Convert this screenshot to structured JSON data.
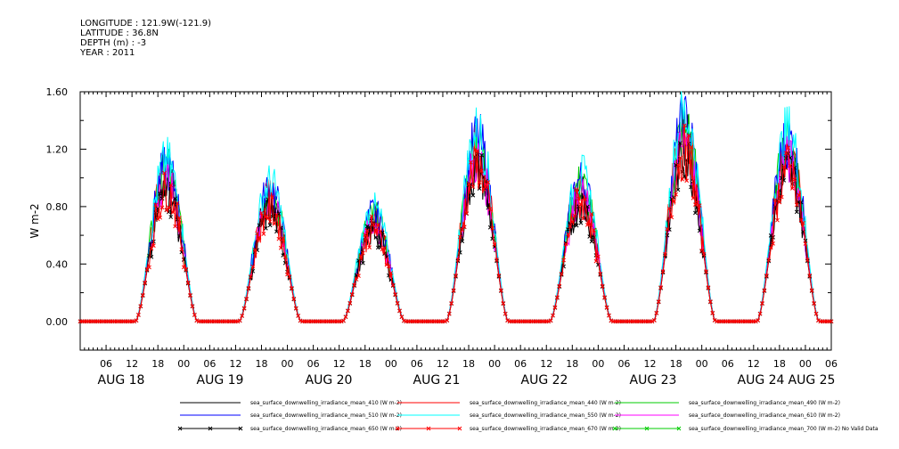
{
  "header": {
    "longitude": "LONGITUDE : 121.9W(-121.9)",
    "latitude": "LATITUDE : 36.8N",
    "depth": "DEPTH (m) : -3",
    "year": "YEAR : 2011"
  },
  "chart_data": {
    "type": "line",
    "title": "",
    "xlabel": "",
    "ylabel": "W m-2",
    "ylim": [
      -0.2,
      1.6
    ],
    "y_ticks": [
      "1.60",
      "1.20",
      "0.80",
      "0.40",
      "0.00"
    ],
    "x_hour_ticks": [
      "06",
      "12",
      "18",
      "00",
      "06",
      "12",
      "18",
      "00",
      "06",
      "12",
      "18",
      "00",
      "06",
      "12",
      "18",
      "00",
      "06",
      "12",
      "18",
      "00",
      "06",
      "12",
      "18",
      "00",
      "06",
      "12",
      "18",
      "00",
      "06"
    ],
    "x_day_labels": [
      "AUG 18",
      "AUG 19",
      "AUG 20",
      "AUG 21",
      "AUG 22",
      "AUG 23",
      "AUG 24",
      "AUG 25"
    ],
    "x_range_hours": [
      0,
      174
    ],
    "grid": false,
    "legend_position": "bottom",
    "day_peaks": [
      {
        "day": "AUG 18",
        "noon_hour": 20,
        "peak": 0.93
      },
      {
        "day": "AUG 19",
        "noon_hour": 44,
        "peak": 0.8
      },
      {
        "day": "AUG 20",
        "noon_hour": 68,
        "peak": 0.65
      },
      {
        "day": "AUG 21",
        "noon_hour": 92,
        "peak": 1.1
      },
      {
        "day": "AUG 22",
        "noon_hour": 116,
        "peak": 0.85
      },
      {
        "day": "AUG 23",
        "noon_hour": 140,
        "peak": 1.2
      },
      {
        "day": "AUG 24",
        "noon_hour": 164,
        "peak": 1.1
      }
    ],
    "series": [
      {
        "name": "sea_surface_downwelling_irradiance_mean_410 (W m-2)",
        "color": "#000000",
        "marker": "line",
        "scale": 1.08
      },
      {
        "name": "sea_surface_downwelling_irradiance_mean_440 (W m-2)",
        "color": "#ff0000",
        "marker": "line",
        "scale": 1.12
      },
      {
        "name": "sea_surface_downwelling_irradiance_mean_490 (W m-2)",
        "color": "#00cc00",
        "marker": "line",
        "scale": 1.15
      },
      {
        "name": "sea_surface_downwelling_irradiance_mean_510 (W m-2)",
        "color": "#0000ff",
        "marker": "line",
        "scale": 1.18
      },
      {
        "name": "sea_surface_downwelling_irradiance_mean_550 (W m-2)",
        "color": "#00ffff",
        "marker": "line",
        "scale": 1.22
      },
      {
        "name": "sea_surface_downwelling_irradiance_mean_610 (W m-2)",
        "color": "#ff00ff",
        "marker": "line",
        "scale": 1.04
      },
      {
        "name": "sea_surface_downwelling_irradiance_mean_650 (W m-2)",
        "color": "#000000",
        "marker": "x",
        "scale": 0.98
      },
      {
        "name": "sea_surface_downwelling_irradiance_mean_670 (W m-2)",
        "color": "#ff0000",
        "marker": "x",
        "scale": 1.0
      },
      {
        "name": "sea_surface_downwelling_irradiance_mean_700 (W m-2) No Valid Data",
        "color": "#00cc00",
        "marker": "x",
        "scale": 0
      }
    ]
  }
}
